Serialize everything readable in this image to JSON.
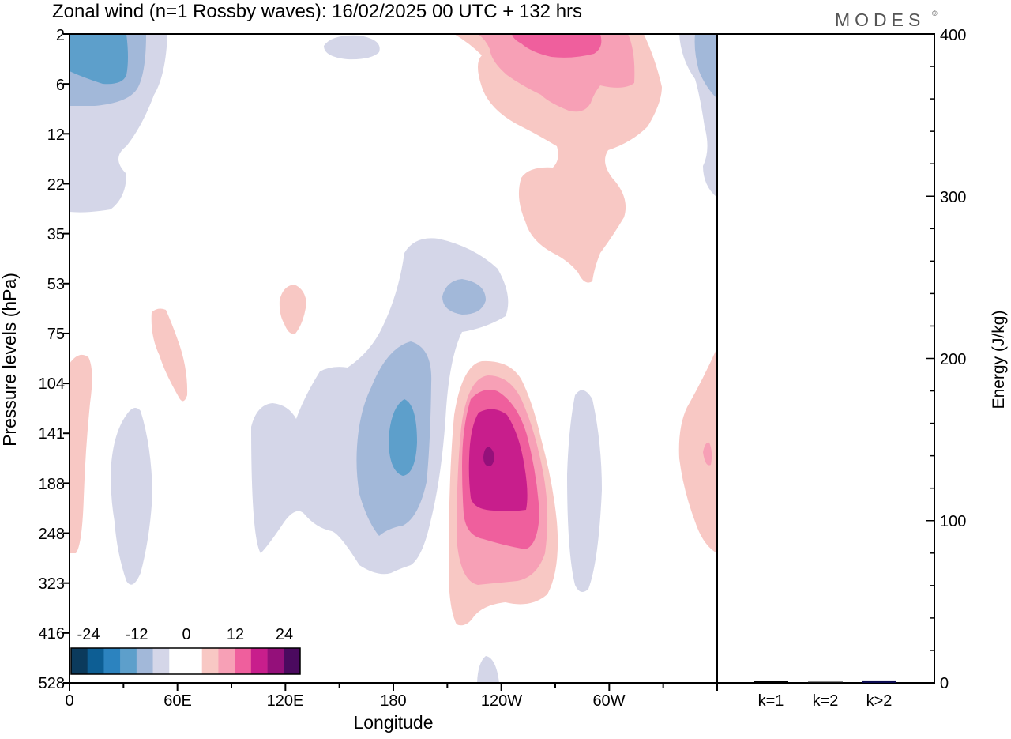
{
  "title": "Zonal wind (n=1 Rossby waves):  16/02/2025  00 UTC  + 132 hrs",
  "brand": "MODES",
  "brand_mark": "©",
  "chart_data": [
    {
      "type": "heatmap",
      "title": "Zonal wind (n=1 Rossby waves):  16/02/2025  00 UTC  + 132 hrs",
      "xlabel": "Longitude",
      "ylabel": "Pressure levels (hPa)",
      "x_ticks": [
        "0",
        "60E",
        "120E",
        "180",
        "120W",
        "60W"
      ],
      "y_ticks": [
        "2",
        "6",
        "12",
        "22",
        "35",
        "53",
        "75",
        "104",
        "141",
        "188",
        "248",
        "323",
        "416",
        "528"
      ],
      "colorbar": {
        "labels": [
          "-24",
          "-12",
          "0",
          "12",
          "24"
        ],
        "colors": [
          "#0b3a5c",
          "#0d5e94",
          "#2c83bf",
          "#5d9fcb",
          "#a2b8d9",
          "#d4d6e8",
          "#ffffff",
          "#ffffff",
          "#f8c8c4",
          "#f7a0b6",
          "#ef5f9d",
          "#c81e8c",
          "#94107a",
          "#4b0a5f"
        ]
      },
      "features": [
        {
          "sign": "negative",
          "max_level": 3,
          "center_lon": 15,
          "center_p": 6
        },
        {
          "sign": "negative",
          "max_level": 3,
          "center_lon": 183,
          "center_p": 141
        },
        {
          "sign": "negative",
          "max_level": 2,
          "center_lon": 215,
          "center_p": 60
        },
        {
          "sign": "positive",
          "max_level": 5,
          "center_lon": 244,
          "center_p": 141
        },
        {
          "sign": "positive",
          "max_level": 3,
          "center_lon": 250,
          "center_p": 2
        },
        {
          "sign": "positive",
          "max_level": 1,
          "center_lon": 355,
          "center_p": 141
        }
      ]
    },
    {
      "type": "bar",
      "categories": [
        "k=1",
        "k=2",
        "k>2"
      ],
      "values": [
        1,
        0.5,
        1.5
      ],
      "ylabel": "Energy (J/kg)",
      "ylim": [
        0,
        400
      ],
      "y_ticks": [
        "0",
        "100",
        "200",
        "300",
        "400"
      ],
      "colors": [
        "#000000",
        "#111111",
        "#0a0a50"
      ]
    }
  ]
}
